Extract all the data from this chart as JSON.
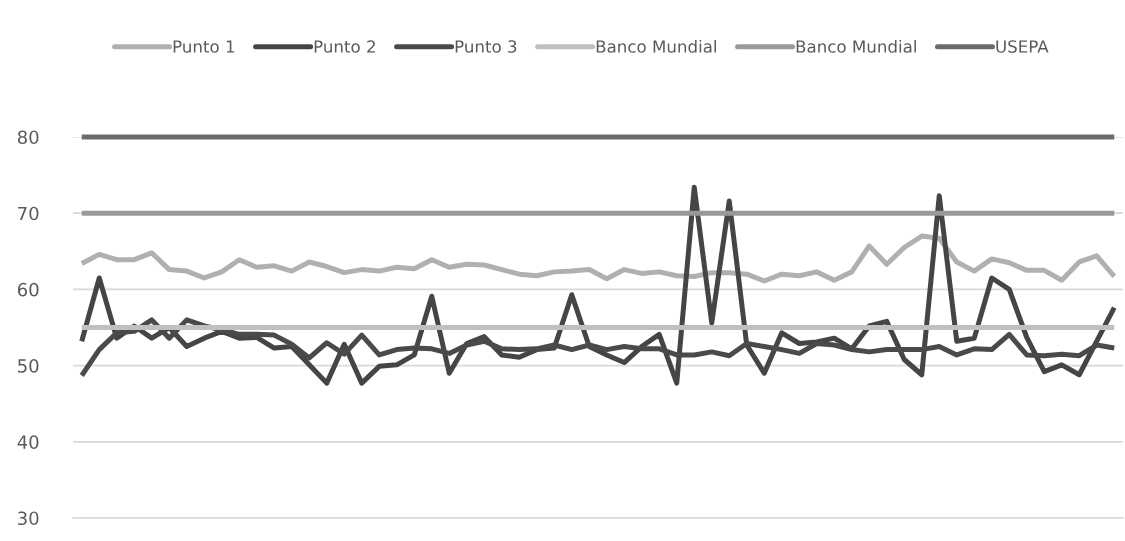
{
  "chart_data": {
    "type": "line",
    "categories": [
      null,
      null,
      null,
      null,
      null,
      null,
      null,
      null,
      null,
      null,
      null,
      null,
      null,
      null,
      null,
      null,
      null,
      null,
      null,
      null,
      null,
      null,
      null,
      null,
      null,
      null,
      null,
      null,
      null,
      null,
      null,
      null,
      null,
      null,
      null,
      null,
      null,
      null,
      null,
      null,
      null,
      null,
      null,
      null,
      null,
      null,
      null,
      null,
      null,
      null,
      null,
      null,
      null,
      null,
      null,
      null,
      null,
      null,
      null,
      null
    ],
    "series": [
      {
        "name": "Punto 1",
        "color": "#b0b0b0",
        "values": [
          63.4,
          64.6,
          63.9,
          63.9,
          64.8,
          62.6,
          62.4,
          61.5,
          62.3,
          63.9,
          62.9,
          63.1,
          62.4,
          63.6,
          63.0,
          62.2,
          62.6,
          62.4,
          62.9,
          62.7,
          63.9,
          62.9,
          63.3,
          63.2,
          62.6,
          62.0,
          61.8,
          62.3,
          62.4,
          62.6,
          61.4,
          62.6,
          62.1,
          62.3,
          61.8,
          61.7,
          62.2,
          62.2,
          62.0,
          61.1,
          62.0,
          61.8,
          62.3,
          61.2,
          62.3,
          65.7,
          63.3,
          65.5,
          67.0,
          66.7,
          63.6,
          62.4,
          64.0,
          63.5,
          62.5,
          62.5,
          61.2,
          63.6,
          64.4,
          61.7
        ]
      },
      {
        "name": "Punto 2",
        "color": "#454545",
        "values": [
          53.2,
          61.5,
          53.6,
          55.2,
          53.6,
          55.0,
          52.5,
          53.6,
          54.5,
          53.6,
          53.7,
          52.3,
          52.5,
          50.1,
          47.7,
          52.8,
          47.7,
          49.9,
          50.1,
          51.4,
          59.1,
          49.0,
          52.9,
          53.8,
          51.4,
          51.1,
          52.1,
          52.3,
          59.3,
          52.5,
          51.4,
          50.4,
          52.5,
          54.1,
          47.7,
          73.4,
          55.6,
          71.6,
          52.7,
          49.0,
          54.3,
          52.9,
          53.1,
          53.6,
          52.2,
          55.2,
          55.8,
          50.8,
          48.8,
          72.3,
          53.2,
          53.6,
          61.5,
          60.0,
          53.7,
          49.2,
          50.1,
          48.8,
          53.2,
          57.6
        ]
      },
      {
        "name": "Punto 3",
        "color": "#4a4a4a",
        "values": [
          48.7,
          52.1,
          54.3,
          54.5,
          56.0,
          53.6,
          56.0,
          55.2,
          54.7,
          54.1,
          54.1,
          54.0,
          52.8,
          51.0,
          53.0,
          51.5,
          54.0,
          51.4,
          52.1,
          52.3,
          52.2,
          51.6,
          52.7,
          53.2,
          52.2,
          52.1,
          52.2,
          52.7,
          52.1,
          52.7,
          52.1,
          52.5,
          52.2,
          52.2,
          51.4,
          51.4,
          51.8,
          51.3,
          52.9,
          52.5,
          52.1,
          51.6,
          52.9,
          52.7,
          52.1,
          51.8,
          52.1,
          52.1,
          52.1,
          52.5,
          51.4,
          52.2,
          52.1,
          54.1,
          51.4,
          51.3,
          51.5,
          51.3,
          52.7,
          52.3
        ]
      },
      {
        "name": "Banco Mundial",
        "color": "#c0c0c0",
        "values": [
          55,
          55,
          55,
          55,
          55,
          55,
          55,
          55,
          55,
          55,
          55,
          55,
          55,
          55,
          55,
          55,
          55,
          55,
          55,
          55,
          55,
          55,
          55,
          55,
          55,
          55,
          55,
          55,
          55,
          55,
          55,
          55,
          55,
          55,
          55,
          55,
          55,
          55,
          55,
          55,
          55,
          55,
          55,
          55,
          55,
          55,
          55,
          55,
          55,
          55,
          55,
          55,
          55,
          55,
          55,
          55,
          55,
          55,
          55,
          55
        ]
      },
      {
        "name": "Banco Mundial",
        "color": "#999999",
        "values": [
          70,
          70,
          70,
          70,
          70,
          70,
          70,
          70,
          70,
          70,
          70,
          70,
          70,
          70,
          70,
          70,
          70,
          70,
          70,
          70,
          70,
          70,
          70,
          70,
          70,
          70,
          70,
          70,
          70,
          70,
          70,
          70,
          70,
          70,
          70,
          70,
          70,
          70,
          70,
          70,
          70,
          70,
          70,
          70,
          70,
          70,
          70,
          70,
          70,
          70,
          70,
          70,
          70,
          70,
          70,
          70,
          70,
          70,
          70,
          70
        ]
      },
      {
        "name": "USEPA",
        "color": "#6b6b6b",
        "values": [
          80,
          80,
          80,
          80,
          80,
          80,
          80,
          80,
          80,
          80,
          80,
          80,
          80,
          80,
          80,
          80,
          80,
          80,
          80,
          80,
          80,
          80,
          80,
          80,
          80,
          80,
          80,
          80,
          80,
          80,
          80,
          80,
          80,
          80,
          80,
          80,
          80,
          80,
          80,
          80,
          80,
          80,
          80,
          80,
          80,
          80,
          80,
          80,
          80,
          80,
          80,
          80,
          80,
          80,
          80,
          80,
          80,
          80,
          80,
          80
        ]
      }
    ],
    "ylim": [
      30,
      80
    ],
    "yticks": [
      30,
      40,
      50,
      60,
      70,
      80
    ],
    "grid": "y",
    "legend": "top",
    "tick_labels": "y"
  }
}
